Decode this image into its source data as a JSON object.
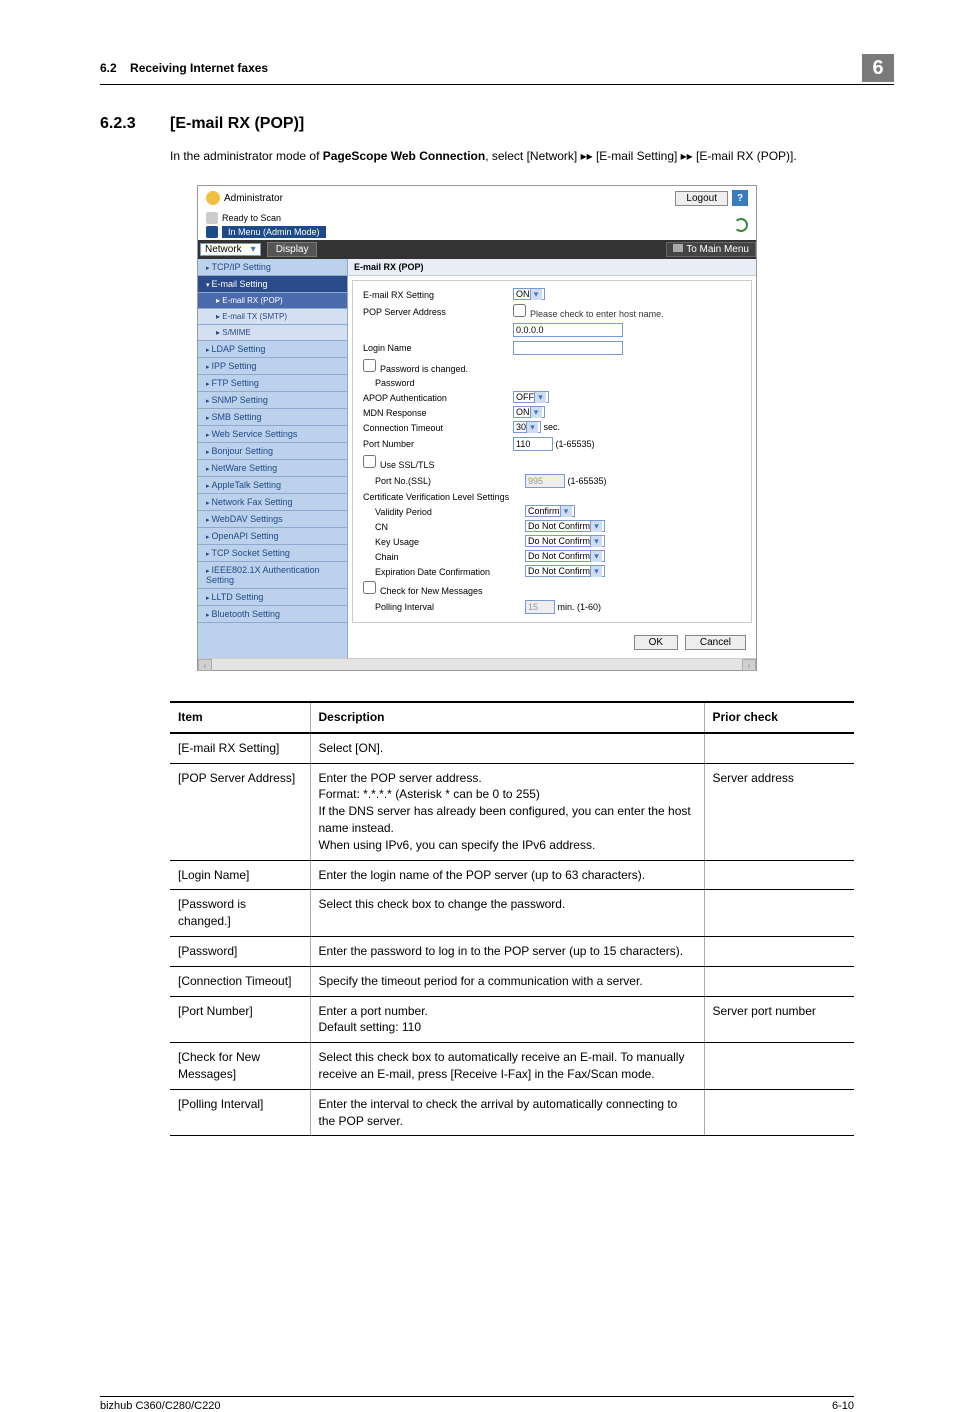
{
  "header": {
    "section": "6.2",
    "title": "Receiving Internet faxes",
    "chapter": "6"
  },
  "section": {
    "number": "6.2.3",
    "name": "[E-mail RX (POP)]"
  },
  "intro": {
    "prefix": "In the administrator mode of ",
    "bold": "PageScope Web Connection",
    "suffix": ", select [Network] ▸▸ [E-mail Setting] ▸▸ [E-mail RX (POP)]."
  },
  "screenshot": {
    "admin": "Administrator",
    "logout": "Logout",
    "ready": "Ready to Scan",
    "menu": "In Menu (Admin Mode)",
    "network": "Network",
    "display": "Display",
    "to_main": "To Main Menu",
    "sidebar": {
      "tcpip": "TCP/IP Setting",
      "email": "E-mail Setting",
      "emailrx": "E-mail RX (POP)",
      "emailtx": "E-mail TX (SMTP)",
      "smime": "S/MIME",
      "ldap": "LDAP Setting",
      "ipp": "IPP Setting",
      "ftp": "FTP Setting",
      "snmp": "SNMP Setting",
      "smb": "SMB Setting",
      "web": "Web Service Settings",
      "bonjour": "Bonjour Setting",
      "netware": "NetWare Setting",
      "appletalk": "AppleTalk Setting",
      "netfax": "Network Fax Setting",
      "webdav": "WebDAV Settings",
      "openapi": "OpenAPI Setting",
      "tcpsocket": "TCP Socket Setting",
      "ieee": "IEEE802.1X Authentication Setting",
      "lltd": "LLTD Setting",
      "bluetooth": "Bluetooth Setting"
    },
    "form": {
      "title": "E-mail RX (POP)",
      "rxsetting": {
        "label": "E-mail RX Setting",
        "value": "ON"
      },
      "popserver": {
        "label": "POP Server Address",
        "check": "Please check to enter host name.",
        "value": "0.0.0.0"
      },
      "loginname": {
        "label": "Login Name",
        "value": ""
      },
      "pwdchanged": {
        "label": "Password is changed."
      },
      "pwd": {
        "label": "Password"
      },
      "apop": {
        "label": "APOP Authentication",
        "value": "OFF"
      },
      "mdn": {
        "label": "MDN Response",
        "value": "ON"
      },
      "conn": {
        "label": "Connection Timeout",
        "value": "30",
        "unit": "sec."
      },
      "port": {
        "label": "Port Number",
        "value": "110",
        "range": "(1-65535)"
      },
      "ssl": {
        "label": "Use SSL/TLS"
      },
      "portssl": {
        "label": "Port No.(SSL)",
        "value": "995",
        "range": "(1-65535)"
      },
      "cert": {
        "label": "Certificate Verification Level Settings"
      },
      "validity": {
        "label": "Validity Period",
        "value": "Confirm"
      },
      "cn": {
        "label": "CN",
        "value": "Do Not Confirm"
      },
      "keyusage": {
        "label": "Key Usage",
        "value": "Do Not Confirm"
      },
      "chain": {
        "label": "Chain",
        "value": "Do Not Confirm"
      },
      "exp": {
        "label": "Expiration Date Confirmation",
        "value": "Do Not Confirm"
      },
      "checknew": {
        "label": "Check for New Messages"
      },
      "poll": {
        "label": "Polling Interval",
        "value": "15",
        "unit": "min.  (1-60)"
      }
    },
    "ok": "OK",
    "cancel": "Cancel"
  },
  "table": {
    "headers": [
      "Item",
      "Description",
      "Prior check"
    ],
    "rows": [
      {
        "item": "[E-mail RX Setting]",
        "desc": "Select [ON].",
        "prior": ""
      },
      {
        "item": "[POP Server Address]",
        "desc": "Enter the POP server address.\nFormat: *.*.*.* (Asterisk * can be 0 to 255)\nIf the DNS server has already been configured, you can enter the host name instead.\nWhen using IPv6, you can specify the IPv6 address.",
        "prior": "Server address"
      },
      {
        "item": "[Login Name]",
        "desc": "Enter the login name of the POP server (up to 63 characters).",
        "prior": ""
      },
      {
        "item": "[Password is changed.]",
        "desc": "Select this check box to change the password.",
        "prior": ""
      },
      {
        "item": "[Password]",
        "desc": "Enter the password to log in to the POP server (up to 15 characters).",
        "prior": ""
      },
      {
        "item": "[Connection Timeout]",
        "desc": "Specify the timeout period for a communication with a server.",
        "prior": ""
      },
      {
        "item": "[Port Number]",
        "desc": "Enter a port number.\nDefault setting: 110",
        "prior": "Server port number"
      },
      {
        "item": "[Check for New Messages]",
        "desc": "Select this check box to automatically receive an E-mail. To manually receive an E-mail, press [Receive I-Fax] in the Fax/Scan mode.",
        "prior": ""
      },
      {
        "item": "[Polling Interval]",
        "desc": "Enter the interval to check the arrival by automatically connecting to the POP server.",
        "prior": ""
      }
    ]
  },
  "footer": {
    "left": "bizhub C360/C280/C220",
    "right": "6-10"
  }
}
